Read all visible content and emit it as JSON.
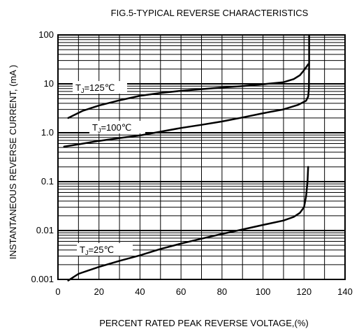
{
  "chart_data": {
    "type": "line",
    "title": "FIG.5-TYPICAL REVERSE CHARACTERISTICS",
    "xlabel": "PERCENT RATED PEAK REVERSE VOLTAGE,(%)",
    "ylabel": "INSTANTANEOUS REVERSE CURRENT, (mA )",
    "xlim": [
      0,
      140
    ],
    "ylim": [
      0.001,
      100
    ],
    "yscale": "log",
    "grid": true,
    "x_ticks": [
      "0",
      "20",
      "40",
      "60",
      "80",
      "100",
      "120",
      "140"
    ],
    "y_ticks": [
      "0.001",
      "0.01",
      "0.1",
      "1.0",
      "10",
      "100"
    ],
    "series": [
      {
        "label_sub": "J",
        "label_rest": "=125℃",
        "points": [
          [
            5,
            2.0
          ],
          [
            12,
            2.8
          ],
          [
            20,
            3.6
          ],
          [
            30,
            4.6
          ],
          [
            40,
            5.7
          ],
          [
            50,
            6.5
          ],
          [
            60,
            7.2
          ],
          [
            70,
            7.8
          ],
          [
            80,
            8.4
          ],
          [
            90,
            9.0
          ],
          [
            100,
            9.8
          ],
          [
            110,
            10.8
          ],
          [
            115,
            12.5
          ],
          [
            118,
            15
          ],
          [
            120,
            19
          ],
          [
            122,
            25
          ]
        ]
      },
      {
        "label_sub": "J",
        "label_rest": "=100℃",
        "points": [
          [
            3,
            0.52
          ],
          [
            10,
            0.58
          ],
          [
            20,
            0.68
          ],
          [
            30,
            0.78
          ],
          [
            40,
            0.88
          ],
          [
            50,
            1.05
          ],
          [
            60,
            1.25
          ],
          [
            70,
            1.45
          ],
          [
            80,
            1.7
          ],
          [
            90,
            2.05
          ],
          [
            100,
            2.5
          ],
          [
            110,
            3.0
          ],
          [
            117,
            3.7
          ],
          [
            121,
            4.5
          ],
          [
            122,
            5.5
          ],
          [
            122.4,
            8
          ],
          [
            122.5,
            25
          ],
          [
            122.5,
            100
          ]
        ]
      },
      {
        "label_sub": "J",
        "label_rest": "=25℃",
        "points": [
          [
            5,
            0.00095
          ],
          [
            10,
            0.0013
          ],
          [
            20,
            0.0018
          ],
          [
            30,
            0.0024
          ],
          [
            40,
            0.0031
          ],
          [
            50,
            0.0042
          ],
          [
            60,
            0.0054
          ],
          [
            70,
            0.0068
          ],
          [
            80,
            0.0085
          ],
          [
            90,
            0.0105
          ],
          [
            100,
            0.013
          ],
          [
            110,
            0.016
          ],
          [
            115,
            0.019
          ],
          [
            118,
            0.023
          ],
          [
            120,
            0.03
          ],
          [
            121,
            0.05
          ],
          [
            121.7,
            0.1
          ],
          [
            122,
            0.2
          ]
        ]
      }
    ]
  }
}
